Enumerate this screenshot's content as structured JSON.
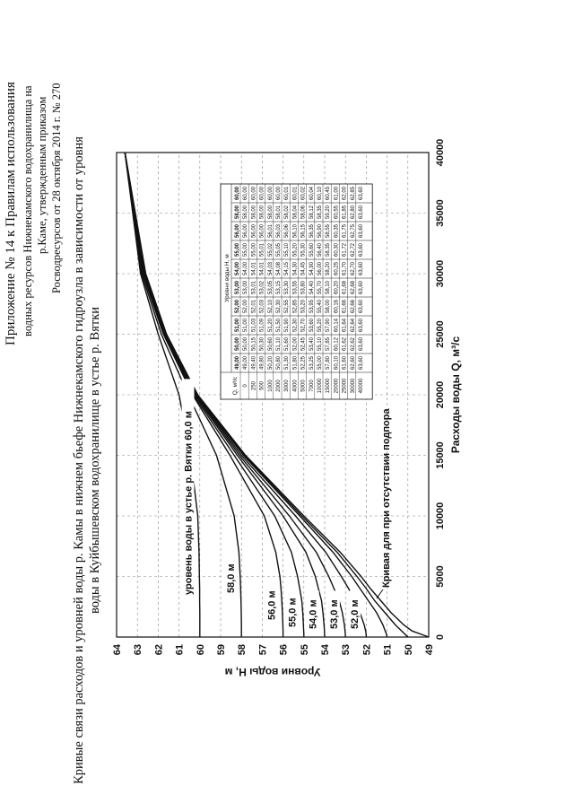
{
  "header": {
    "line1": "Приложение № 14 к Правилам использования",
    "line2": "водных ресурсов Нижнекамского водохранилища на",
    "line3": "р.Каме, утвержденным приказом",
    "line4": "Росводресурсов от 28 октября 2014 г. № 270"
  },
  "chart_title": {
    "line1": "Кривые связи расходов и уровней воды р. Камы в нижнем бьефе Нижнекамского гидроузла в зависимости от уровня",
    "line2": "воды в Куйбышевском водохранилище в устье р. Вятки"
  },
  "chart_data": {
    "type": "line",
    "xlabel": "Расходы воды Q, м³/с",
    "ylabel": "Уровни воды H, м",
    "xlim": [
      0,
      40000
    ],
    "ylim": [
      49,
      64
    ],
    "x_ticks": [
      "0",
      "5000",
      "10000",
      "15000",
      "20000",
      "25000",
      "30000",
      "35000",
      "40000"
    ],
    "y_ticks": [
      "49",
      "50",
      "51",
      "52",
      "53",
      "54",
      "55",
      "56",
      "57",
      "58",
      "59",
      "60",
      "61",
      "62",
      "63",
      "64"
    ],
    "grid": true,
    "curve_labels": [
      "уровень воды в устье р. Вятки 60,0 м",
      "58,0 м",
      "56,0 м",
      "55,0 м",
      "54,0 м",
      "53,0 м",
      "52,0 м"
    ],
    "annotation": "Кривая для при отсутствии подпора",
    "x": [
      0,
      250,
      500,
      1000,
      2000,
      3000,
      4000,
      5000,
      7000,
      10000,
      15000,
      20000,
      25000,
      30000,
      40000
    ],
    "series": [
      {
        "name": "49,00",
        "values": [
          49.0,
          49.4,
          49.8,
          50.2,
          50.8,
          51.3,
          51.8,
          52.25,
          53.25,
          55.0,
          57.8,
          60.1,
          61.6,
          62.6,
          63.6
        ]
      },
      {
        "name": "50,00",
        "values": [
          50.0,
          50.15,
          50.3,
          50.6,
          51.1,
          51.6,
          52.0,
          52.45,
          53.4,
          55.1,
          57.85,
          60.12,
          61.62,
          62.62,
          63.6
        ]
      },
      {
        "name": "51,00",
        "values": [
          51.0,
          51.03,
          51.09,
          51.2,
          51.5,
          51.9,
          52.3,
          52.7,
          53.6,
          55.2,
          57.9,
          60.14,
          61.64,
          62.64,
          63.6
        ]
      },
      {
        "name": "52,00",
        "values": [
          52.0,
          52.01,
          52.03,
          52.1,
          52.3,
          52.55,
          52.85,
          53.2,
          53.95,
          55.4,
          58.0,
          60.16,
          61.66,
          62.66,
          63.6
        ]
      },
      {
        "name": "53,00",
        "values": [
          53.0,
          53.01,
          53.02,
          53.05,
          53.15,
          53.3,
          53.55,
          53.8,
          54.4,
          55.7,
          58.1,
          60.2,
          61.68,
          62.68,
          63.6
        ]
      },
      {
        "name": "54,00",
        "values": [
          54.0,
          54.01,
          54.01,
          54.03,
          54.08,
          54.15,
          54.3,
          54.45,
          54.9,
          56.0,
          58.2,
          60.25,
          61.7,
          62.7,
          63.6
        ]
      },
      {
        "name": "55,00",
        "values": [
          55.0,
          55.0,
          55.01,
          55.02,
          55.05,
          55.1,
          55.2,
          55.3,
          55.6,
          56.4,
          58.35,
          60.3,
          61.72,
          62.72,
          63.6
        ]
      },
      {
        "name": "56,00",
        "values": [
          56.0,
          56.0,
          56.0,
          56.01,
          56.03,
          56.06,
          56.1,
          56.15,
          56.35,
          56.9,
          58.55,
          60.35,
          61.75,
          62.75,
          63.6
        ]
      },
      {
        "name": "58,00",
        "values": [
          58.0,
          58.0,
          58.0,
          58.0,
          58.01,
          58.02,
          58.04,
          58.06,
          58.12,
          58.35,
          59.2,
          60.55,
          61.85,
          62.8,
          63.6
        ]
      },
      {
        "name": "60,00",
        "values": [
          60.0,
          60.0,
          60.0,
          60.0,
          60.0,
          60.01,
          60.01,
          60.02,
          60.04,
          60.1,
          60.45,
          61.0,
          62.0,
          62.85,
          63.6
        ]
      }
    ],
    "table": {
      "header_q": "Q, м³/с",
      "header_levels": "Уровни воды Н, м",
      "columns": [
        "49,00",
        "50,00",
        "51,00",
        "52,00",
        "53,00",
        "54,00",
        "55,00",
        "56,00",
        "58,00",
        "60,00"
      ],
      "rows": [
        {
          "q": "0",
          "v": [
            "49,00",
            "50,00",
            "51,00",
            "52,00",
            "53,00",
            "54,00",
            "55,00",
            "56,00",
            "58,00",
            "60,00"
          ]
        },
        {
          "q": "250",
          "v": [
            "49,40",
            "50,15",
            "51,03",
            "52,01",
            "53,01",
            "54,01",
            "55,00",
            "56,00",
            "58,00",
            "60,00"
          ]
        },
        {
          "q": "500",
          "v": [
            "49,80",
            "50,30",
            "51,09",
            "52,03",
            "53,02",
            "54,01",
            "55,01",
            "56,00",
            "58,00",
            "60,00"
          ]
        },
        {
          "q": "1000",
          "v": [
            "50,20",
            "50,60",
            "51,20",
            "52,10",
            "53,05",
            "54,03",
            "55,02",
            "56,01",
            "58,00",
            "60,00"
          ]
        },
        {
          "q": "2000",
          "v": [
            "50,80",
            "51,10",
            "51,50",
            "52,30",
            "53,15",
            "54,08",
            "55,05",
            "56,03",
            "58,01",
            "60,00"
          ]
        },
        {
          "q": "3000",
          "v": [
            "51,30",
            "51,60",
            "51,90",
            "52,55",
            "53,30",
            "54,15",
            "55,10",
            "56,06",
            "58,02",
            "60,01"
          ]
        },
        {
          "q": "4000",
          "v": [
            "51,80",
            "52,00",
            "52,30",
            "52,85",
            "53,55",
            "54,30",
            "55,20",
            "56,10",
            "58,04",
            "60,01"
          ]
        },
        {
          "q": "5000",
          "v": [
            "52,25",
            "52,45",
            "52,70",
            "53,20",
            "53,80",
            "54,45",
            "55,30",
            "56,15",
            "58,06",
            "60,02"
          ]
        },
        {
          "q": "7000",
          "v": [
            "53,25",
            "53,40",
            "53,60",
            "53,95",
            "54,40",
            "54,90",
            "55,60",
            "56,35",
            "58,12",
            "60,04"
          ]
        },
        {
          "q": "10000",
          "v": [
            "55,00",
            "55,10",
            "55,20",
            "55,40",
            "55,70",
            "56,00",
            "56,40",
            "56,90",
            "58,35",
            "60,10"
          ]
        },
        {
          "q": "15000",
          "v": [
            "57,80",
            "57,85",
            "57,90",
            "58,00",
            "58,10",
            "58,20",
            "58,35",
            "58,55",
            "59,20",
            "60,45"
          ]
        },
        {
          "q": "20000",
          "v": [
            "60,10",
            "60,12",
            "60,14",
            "60,16",
            "60,20",
            "60,25",
            "60,30",
            "60,35",
            "60,55",
            "61,00"
          ]
        },
        {
          "q": "25000",
          "v": [
            "61,60",
            "61,62",
            "61,64",
            "61,66",
            "61,68",
            "61,70",
            "61,72",
            "61,75",
            "61,85",
            "62,00"
          ]
        },
        {
          "q": "30000",
          "v": [
            "62,60",
            "62,62",
            "62,64",
            "62,66",
            "62,68",
            "62,70",
            "62,72",
            "62,75",
            "62,80",
            "62,85"
          ]
        },
        {
          "q": "40000",
          "v": [
            "63,60",
            "63,60",
            "63,60",
            "63,60",
            "63,60",
            "63,60",
            "63,60",
            "63,60",
            "63,60",
            "63,60"
          ]
        }
      ]
    }
  }
}
